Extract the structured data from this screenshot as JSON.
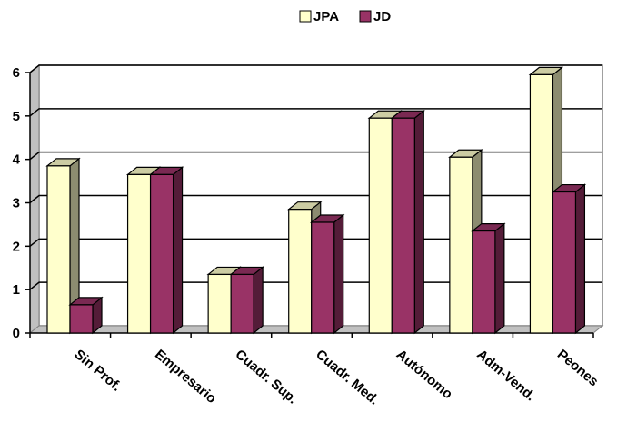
{
  "chart_data": {
    "type": "bar",
    "categories": [
      "Sin Prof.",
      "Empresario",
      "Cuadr. Sup.",
      "Cuadr. Med.",
      "Autónomo",
      "Adm-Vend.",
      "Peones"
    ],
    "series": [
      {
        "name": "JPA",
        "values": [
          3.85,
          3.65,
          1.35,
          2.85,
          4.95,
          4.05,
          5.95
        ],
        "color": "#ffffcc"
      },
      {
        "name": "JD",
        "values": [
          0.65,
          3.65,
          1.35,
          2.55,
          4.95,
          2.35,
          3.25
        ],
        "color": "#993366"
      }
    ],
    "yticks": [
      "0",
      "1",
      "2",
      "3",
      "4",
      "5",
      "6"
    ],
    "ylim": [
      0,
      6
    ],
    "grid": true,
    "legend_position": "top-center",
    "style": "3d-bar"
  }
}
